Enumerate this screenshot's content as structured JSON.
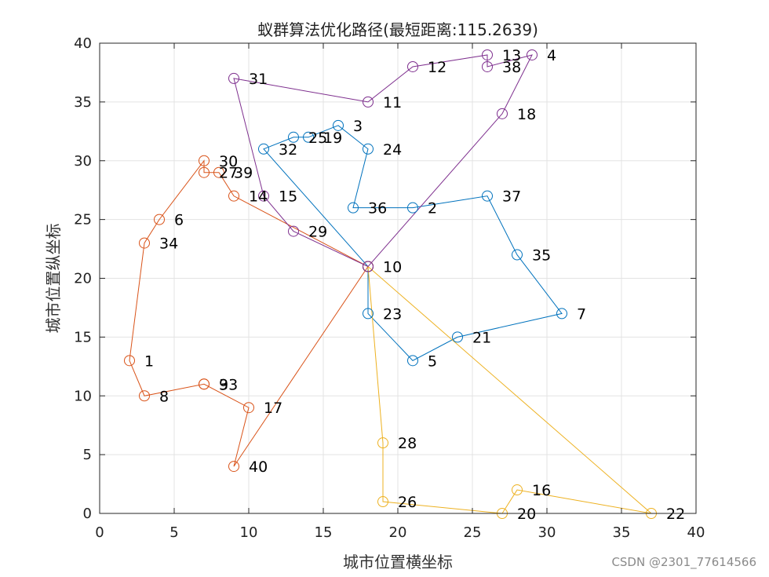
{
  "chart_data": {
    "type": "line",
    "title": "蚁群算法优化路径(最短距离:115.2639)",
    "xlabel": "城市位置横坐标",
    "ylabel": "城市位置纵坐标",
    "xlim": [
      0,
      40
    ],
    "ylim": [
      0,
      40
    ],
    "xticks": [
      0,
      5,
      10,
      15,
      20,
      25,
      30,
      35,
      40
    ],
    "yticks": [
      0,
      5,
      10,
      15,
      20,
      25,
      30,
      35,
      40
    ],
    "grid": true,
    "marker": "open-circle",
    "cities": [
      {
        "id": "1",
        "x": 2,
        "y": 13
      },
      {
        "id": "2",
        "x": 21,
        "y": 26
      },
      {
        "id": "3",
        "x": 16,
        "y": 33
      },
      {
        "id": "4",
        "x": 29,
        "y": 39
      },
      {
        "id": "5",
        "x": 21,
        "y": 13
      },
      {
        "id": "6",
        "x": 4,
        "y": 25
      },
      {
        "id": "7",
        "x": 31,
        "y": 17
      },
      {
        "id": "8",
        "x": 3,
        "y": 10
      },
      {
        "id": "9",
        "x": 7,
        "y": 11
      },
      {
        "id": "10",
        "x": 18,
        "y": 21
      },
      {
        "id": "11",
        "x": 18,
        "y": 35
      },
      {
        "id": "12",
        "x": 21,
        "y": 38
      },
      {
        "id": "13",
        "x": 26,
        "y": 39
      },
      {
        "id": "14",
        "x": 9,
        "y": 27
      },
      {
        "id": "15",
        "x": 11,
        "y": 27
      },
      {
        "id": "16",
        "x": 28,
        "y": 2
      },
      {
        "id": "17",
        "x": 10,
        "y": 9
      },
      {
        "id": "18",
        "x": 27,
        "y": 34
      },
      {
        "id": "19",
        "x": 14,
        "y": 32
      },
      {
        "id": "20",
        "x": 27,
        "y": 0
      },
      {
        "id": "21",
        "x": 24,
        "y": 15
      },
      {
        "id": "22",
        "x": 37,
        "y": 0
      },
      {
        "id": "23",
        "x": 18,
        "y": 17
      },
      {
        "id": "24",
        "x": 18,
        "y": 31
      },
      {
        "id": "25",
        "x": 13,
        "y": 32
      },
      {
        "id": "26",
        "x": 19,
        "y": 1
      },
      {
        "id": "27",
        "x": 7,
        "y": 29
      },
      {
        "id": "28",
        "x": 19,
        "y": 6
      },
      {
        "id": "29",
        "x": 13,
        "y": 24
      },
      {
        "id": "30",
        "x": 7,
        "y": 30
      },
      {
        "id": "31",
        "x": 9,
        "y": 37
      },
      {
        "id": "32",
        "x": 11,
        "y": 31
      },
      {
        "id": "33",
        "x": 7,
        "y": 11
      },
      {
        "id": "34",
        "x": 3,
        "y": 23
      },
      {
        "id": "35",
        "x": 28,
        "y": 22
      },
      {
        "id": "36",
        "x": 17,
        "y": 26
      },
      {
        "id": "37",
        "x": 26,
        "y": 27
      },
      {
        "id": "38",
        "x": 26,
        "y": 38
      },
      {
        "id": "39",
        "x": 8,
        "y": 29
      },
      {
        "id": "40",
        "x": 9,
        "y": 4
      }
    ],
    "series": [
      {
        "color": "#0072BD",
        "path": [
          "10",
          "32",
          "25",
          "19",
          "3",
          "24",
          "36",
          "2",
          "37",
          "35",
          "7",
          "21",
          "5",
          "23",
          "10"
        ]
      },
      {
        "color": "#D95319",
        "path": [
          "10",
          "14",
          "39",
          "27",
          "30",
          "6",
          "34",
          "1",
          "8",
          "33",
          "9",
          "17",
          "40",
          "10"
        ]
      },
      {
        "color": "#EDB120",
        "path": [
          "10",
          "22",
          "16",
          "20",
          "26",
          "28",
          "10"
        ]
      },
      {
        "color": "#7E2F8E",
        "path": [
          "10",
          "29",
          "15",
          "31",
          "11",
          "12",
          "13",
          "38",
          "4",
          "18",
          "10"
        ]
      }
    ]
  },
  "watermark": "CSDN @2301_77614566"
}
